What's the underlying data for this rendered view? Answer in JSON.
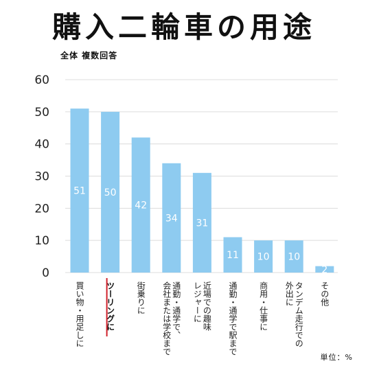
{
  "header": {
    "title": "購入二輪車の用途",
    "subtitle": "全体 複数回答",
    "unit_note": "単位：%"
  },
  "colors": {
    "bar": "#8ecbf0",
    "grid": "#dcdcdc",
    "highlight_underline": "#d0202a"
  },
  "chart_data": {
    "type": "bar",
    "title": "購入二輪車の用途",
    "subtitle": "全体 複数回答",
    "ylabel": "",
    "xlabel": "",
    "unit": "単位：%",
    "ylim": [
      0,
      60
    ],
    "yticks": [
      0,
      10,
      20,
      30,
      40,
      50,
      60
    ],
    "grid": true,
    "orientation": "vertical",
    "categories": [
      "買い物・用足しに",
      "ツーリングに",
      "街乗りに",
      "通勤・通学で、会社または学校まで",
      "近場での趣味レジャーに",
      "通勤・通学で駅まで",
      "商用・仕事に",
      "タンデム走行での外出に",
      "その他"
    ],
    "category_lines": [
      [
        "買い物・用足しに"
      ],
      [
        "ツーリングに"
      ],
      [
        "街乗りに"
      ],
      [
        "通勤・通学で、",
        "会社または学校まで"
      ],
      [
        "近場での趣味",
        "レジャーに"
      ],
      [
        "通勤・通学で駅まで"
      ],
      [
        "商用・仕事に"
      ],
      [
        "タンデム走行での",
        "外出に"
      ],
      [
        "その他"
      ]
    ],
    "values": [
      51,
      50,
      42,
      34,
      31,
      11,
      10,
      10,
      2
    ],
    "highlighted_category": "ツーリングに"
  }
}
